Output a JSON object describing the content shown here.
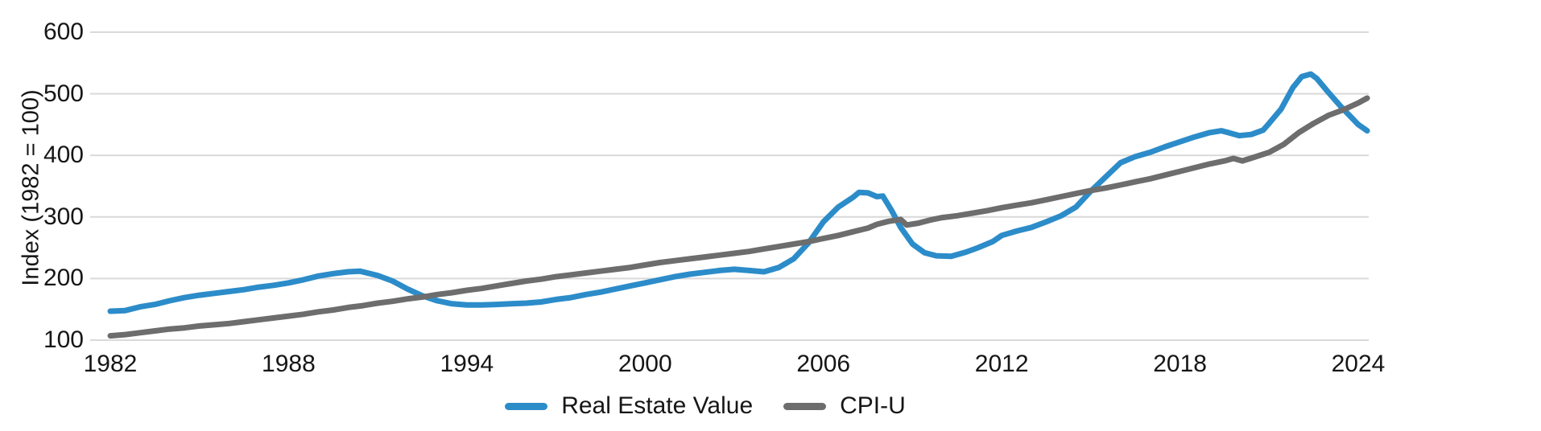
{
  "chart_data": {
    "type": "line",
    "title": "",
    "xlabel": "",
    "ylabel": "Index (1982 = 100)",
    "xlim": [
      1981.3,
      2024.8
    ],
    "ylim": [
      100,
      600
    ],
    "x_ticks": [
      "1982",
      "1988",
      "1994",
      "2000",
      "2006",
      "2012",
      "2018",
      "2024"
    ],
    "x_tick_years": [
      1982,
      1988,
      1994,
      2000,
      2006,
      2012,
      2018,
      2024
    ],
    "y_ticks": [
      "100",
      "200",
      "300",
      "400",
      "500",
      "600"
    ],
    "y_tick_values": [
      100,
      200,
      300,
      400,
      500,
      600
    ],
    "grid": "horizontal-only",
    "gridline_color": "#D9D9D9",
    "text_color": "#161616",
    "background_color": "#FFFFFF",
    "legend_position": "bottom-center",
    "series": [
      {
        "name": "Real Estate Value",
        "color": "#2C8CC9",
        "points": [
          [
            1982,
            147
          ],
          [
            1982.5,
            148
          ],
          [
            1983,
            154
          ],
          [
            1983.5,
            158
          ],
          [
            1984,
            164
          ],
          [
            1984.5,
            169
          ],
          [
            1985,
            173
          ],
          [
            1985.5,
            176
          ],
          [
            1986,
            179
          ],
          [
            1986.5,
            182
          ],
          [
            1987,
            186
          ],
          [
            1987.5,
            189
          ],
          [
            1988,
            193
          ],
          [
            1988.5,
            198
          ],
          [
            1989,
            204
          ],
          [
            1989.5,
            208
          ],
          [
            1990,
            211
          ],
          [
            1990.4,
            212
          ],
          [
            1991,
            205
          ],
          [
            1991.5,
            196
          ],
          [
            1992,
            183
          ],
          [
            1992.5,
            172
          ],
          [
            1993,
            164
          ],
          [
            1993.5,
            159
          ],
          [
            1994,
            157
          ],
          [
            1994.5,
            157
          ],
          [
            1995,
            158
          ],
          [
            1995.5,
            159
          ],
          [
            1996,
            160
          ],
          [
            1996.5,
            162
          ],
          [
            1997,
            166
          ],
          [
            1997.5,
            169
          ],
          [
            1998,
            174
          ],
          [
            1998.5,
            178
          ],
          [
            1999,
            183
          ],
          [
            1999.5,
            188
          ],
          [
            2000,
            193
          ],
          [
            2000.5,
            198
          ],
          [
            2001,
            203
          ],
          [
            2001.5,
            207
          ],
          [
            2002,
            210
          ],
          [
            2002.5,
            213
          ],
          [
            2003,
            215
          ],
          [
            2003.5,
            213
          ],
          [
            2004,
            211
          ],
          [
            2004.5,
            218
          ],
          [
            2005,
            232
          ],
          [
            2005.5,
            258
          ],
          [
            2006,
            292
          ],
          [
            2006.5,
            316
          ],
          [
            2007,
            332
          ],
          [
            2007.2,
            340
          ],
          [
            2007.5,
            339
          ],
          [
            2007.8,
            333
          ],
          [
            2008,
            334
          ],
          [
            2008.3,
            310
          ],
          [
            2008.6,
            283
          ],
          [
            2009,
            256
          ],
          [
            2009.4,
            242
          ],
          [
            2009.8,
            237
          ],
          [
            2010.3,
            236
          ],
          [
            2010.8,
            243
          ],
          [
            2011.2,
            250
          ],
          [
            2011.7,
            260
          ],
          [
            2012,
            270
          ],
          [
            2012.5,
            277
          ],
          [
            2013,
            283
          ],
          [
            2013.5,
            292
          ],
          [
            2014,
            302
          ],
          [
            2014.5,
            316
          ],
          [
            2015,
            342
          ],
          [
            2015.5,
            365
          ],
          [
            2016,
            388
          ],
          [
            2016.5,
            398
          ],
          [
            2017,
            405
          ],
          [
            2017.5,
            414
          ],
          [
            2018,
            422
          ],
          [
            2018.5,
            430
          ],
          [
            2019,
            437
          ],
          [
            2019.4,
            440
          ],
          [
            2019.7,
            436
          ],
          [
            2020,
            432
          ],
          [
            2020.4,
            434
          ],
          [
            2020.8,
            441
          ],
          [
            2021,
            452
          ],
          [
            2021.4,
            475
          ],
          [
            2021.8,
            510
          ],
          [
            2022.1,
            528
          ],
          [
            2022.4,
            532
          ],
          [
            2022.6,
            525
          ],
          [
            2023,
            502
          ],
          [
            2023.4,
            480
          ],
          [
            2023.8,
            460
          ],
          [
            2024,
            450
          ],
          [
            2024.3,
            440
          ]
        ]
      },
      {
        "name": "CPI-U",
        "color": "#6D6D6D",
        "points": [
          [
            1982,
            107
          ],
          [
            1982.5,
            109
          ],
          [
            1983,
            112
          ],
          [
            1983.5,
            115
          ],
          [
            1984,
            118
          ],
          [
            1984.5,
            120
          ],
          [
            1985,
            123
          ],
          [
            1985.5,
            125
          ],
          [
            1986,
            127
          ],
          [
            1986.5,
            130
          ],
          [
            1987,
            133
          ],
          [
            1987.5,
            136
          ],
          [
            1988,
            139
          ],
          [
            1988.5,
            142
          ],
          [
            1989,
            146
          ],
          [
            1989.5,
            149
          ],
          [
            1990,
            153
          ],
          [
            1990.5,
            156
          ],
          [
            1991,
            160
          ],
          [
            1991.5,
            163
          ],
          [
            1992,
            167
          ],
          [
            1992.5,
            170
          ],
          [
            1993,
            174
          ],
          [
            1993.5,
            177
          ],
          [
            1994,
            181
          ],
          [
            1994.5,
            184
          ],
          [
            1995,
            188
          ],
          [
            1995.5,
            192
          ],
          [
            1996,
            196
          ],
          [
            1996.5,
            199
          ],
          [
            1997,
            203
          ],
          [
            1997.5,
            206
          ],
          [
            1998,
            209
          ],
          [
            1998.5,
            212
          ],
          [
            1999,
            215
          ],
          [
            1999.5,
            218
          ],
          [
            2000,
            222
          ],
          [
            2000.5,
            226
          ],
          [
            2001,
            229
          ],
          [
            2001.5,
            232
          ],
          [
            2002,
            235
          ],
          [
            2002.5,
            238
          ],
          [
            2003,
            241
          ],
          [
            2003.5,
            244
          ],
          [
            2004,
            248
          ],
          [
            2004.5,
            252
          ],
          [
            2005,
            256
          ],
          [
            2005.5,
            260
          ],
          [
            2006,
            265
          ],
          [
            2006.5,
            270
          ],
          [
            2007,
            276
          ],
          [
            2007.5,
            282
          ],
          [
            2007.8,
            288
          ],
          [
            2008.2,
            293
          ],
          [
            2008.6,
            296
          ],
          [
            2008.8,
            287
          ],
          [
            2009.2,
            290
          ],
          [
            2009.6,
            295
          ],
          [
            2010,
            299
          ],
          [
            2010.5,
            302
          ],
          [
            2011,
            306
          ],
          [
            2011.5,
            310
          ],
          [
            2012,
            315
          ],
          [
            2012.5,
            319
          ],
          [
            2013,
            323
          ],
          [
            2013.5,
            328
          ],
          [
            2014,
            333
          ],
          [
            2014.5,
            338
          ],
          [
            2015,
            343
          ],
          [
            2015.5,
            347
          ],
          [
            2016,
            352
          ],
          [
            2016.5,
            357
          ],
          [
            2017,
            362
          ],
          [
            2017.5,
            368
          ],
          [
            2018,
            374
          ],
          [
            2018.5,
            380
          ],
          [
            2019,
            386
          ],
          [
            2019.5,
            391
          ],
          [
            2019.8,
            395
          ],
          [
            2020.1,
            391
          ],
          [
            2020.5,
            397
          ],
          [
            2021,
            405
          ],
          [
            2021.5,
            418
          ],
          [
            2022,
            437
          ],
          [
            2022.5,
            452
          ],
          [
            2023,
            465
          ],
          [
            2023.5,
            474
          ],
          [
            2024,
            485
          ],
          [
            2024.3,
            493
          ]
        ]
      }
    ]
  }
}
